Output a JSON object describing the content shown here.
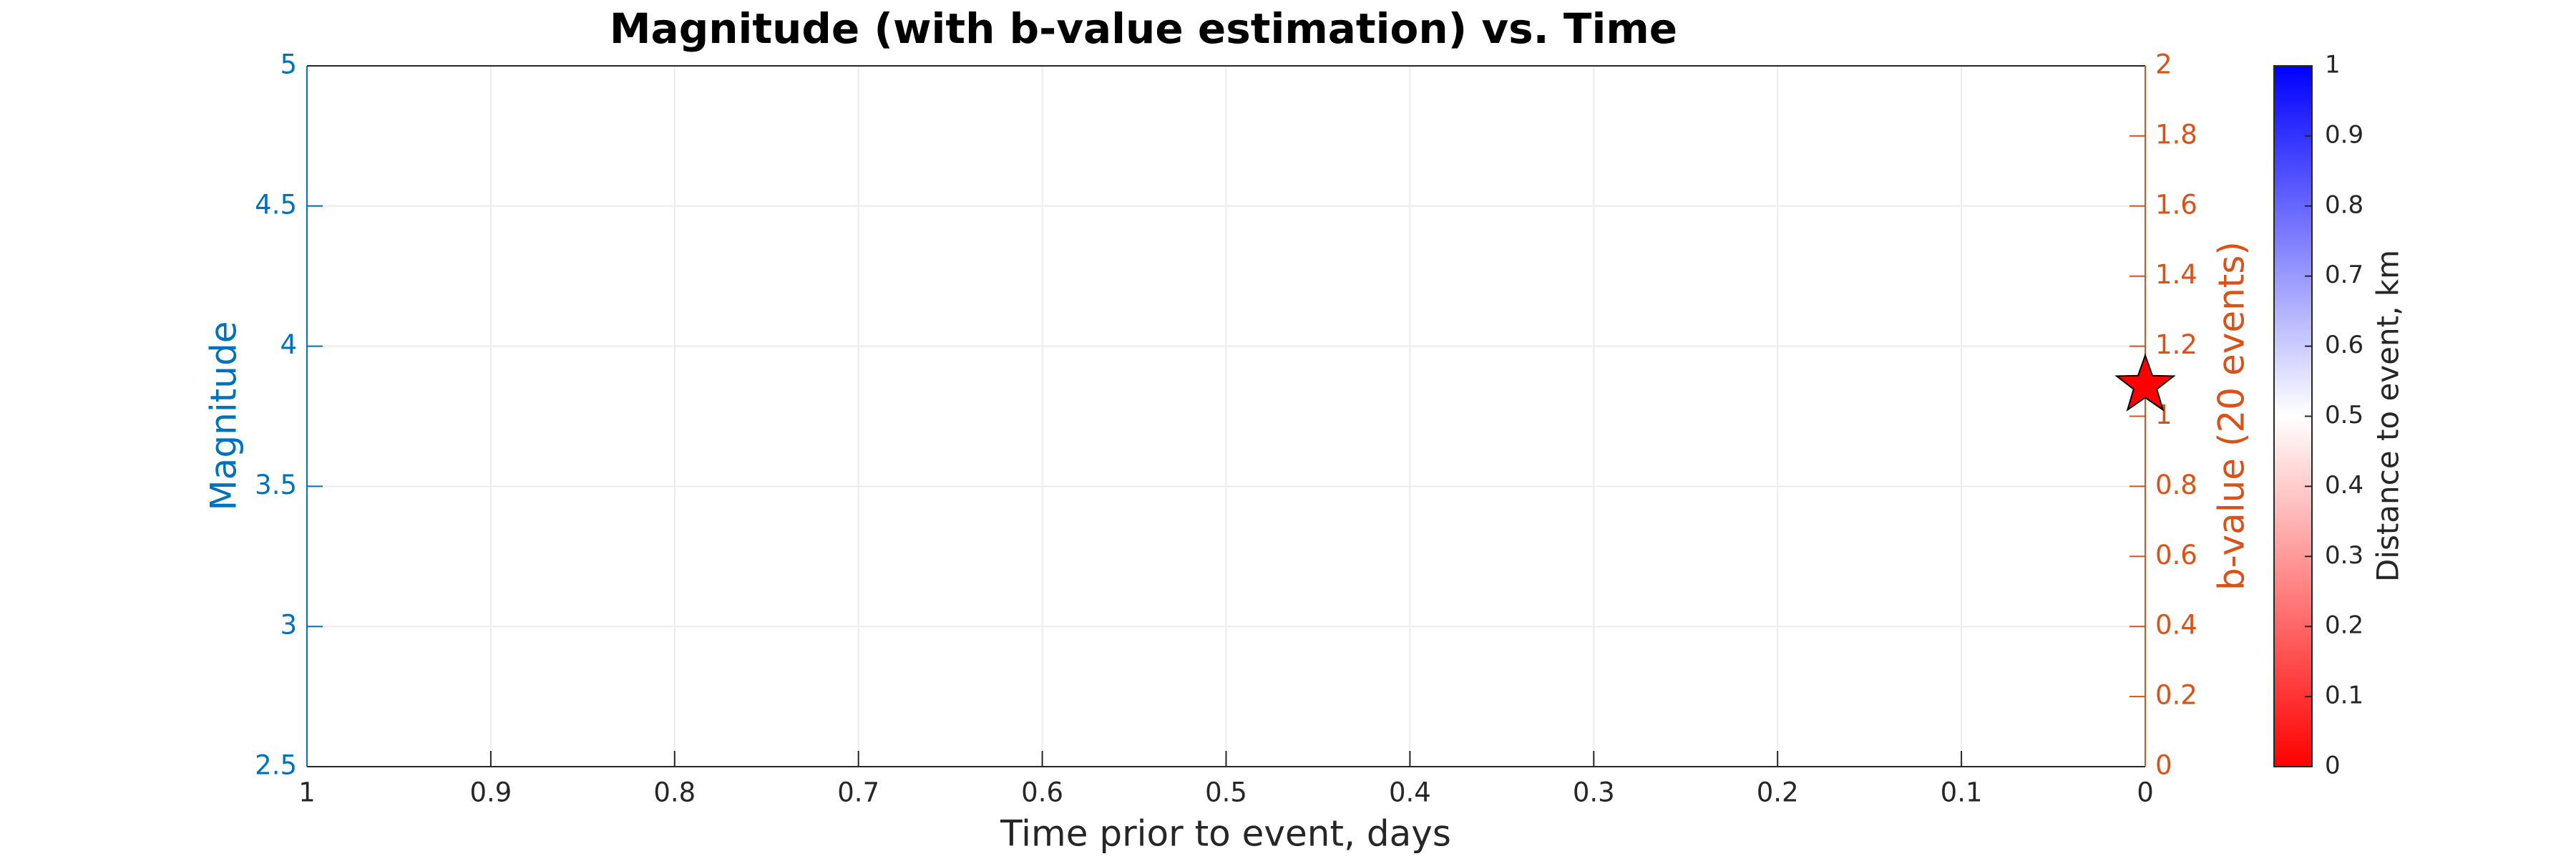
{
  "chart_data": {
    "type": "scatter",
    "title": "Magnitude (with b-value estimation) vs. Time",
    "x_label": "Time prior to event, days",
    "y_label": "Magnitude",
    "y2_label": "b-value (20 events)",
    "xlim": [
      1,
      0
    ],
    "xticks": [
      1,
      0.9,
      0.8,
      0.7,
      0.6,
      0.5,
      0.4,
      0.3,
      0.2,
      0.1,
      0
    ],
    "ylim": [
      2.5,
      5
    ],
    "yticks": [
      2.5,
      3,
      3.5,
      4,
      4.5,
      5
    ],
    "y2lim": [
      0,
      2
    ],
    "y2ticks": [
      0,
      0.2,
      0.4,
      0.6,
      0.8,
      1,
      1.2,
      1.4,
      1.6,
      1.8,
      2
    ],
    "y_color": "#0072bd",
    "y2_color": "#d95319",
    "grid": true,
    "series": [
      {
        "color": "#ff0000",
        "marker": "star",
        "x": [
          0
        ],
        "values": [
          3.86
        ]
      }
    ],
    "colorbar": {
      "label": "Distance to event, km",
      "clim": [
        0,
        1
      ],
      "ticks": [
        0,
        0.1,
        0.2,
        0.3,
        0.4,
        0.5,
        0.6,
        0.7,
        0.8,
        0.9,
        1
      ],
      "colormap": [
        "#ff0000",
        "#ffffff",
        "#0000ff"
      ]
    }
  }
}
